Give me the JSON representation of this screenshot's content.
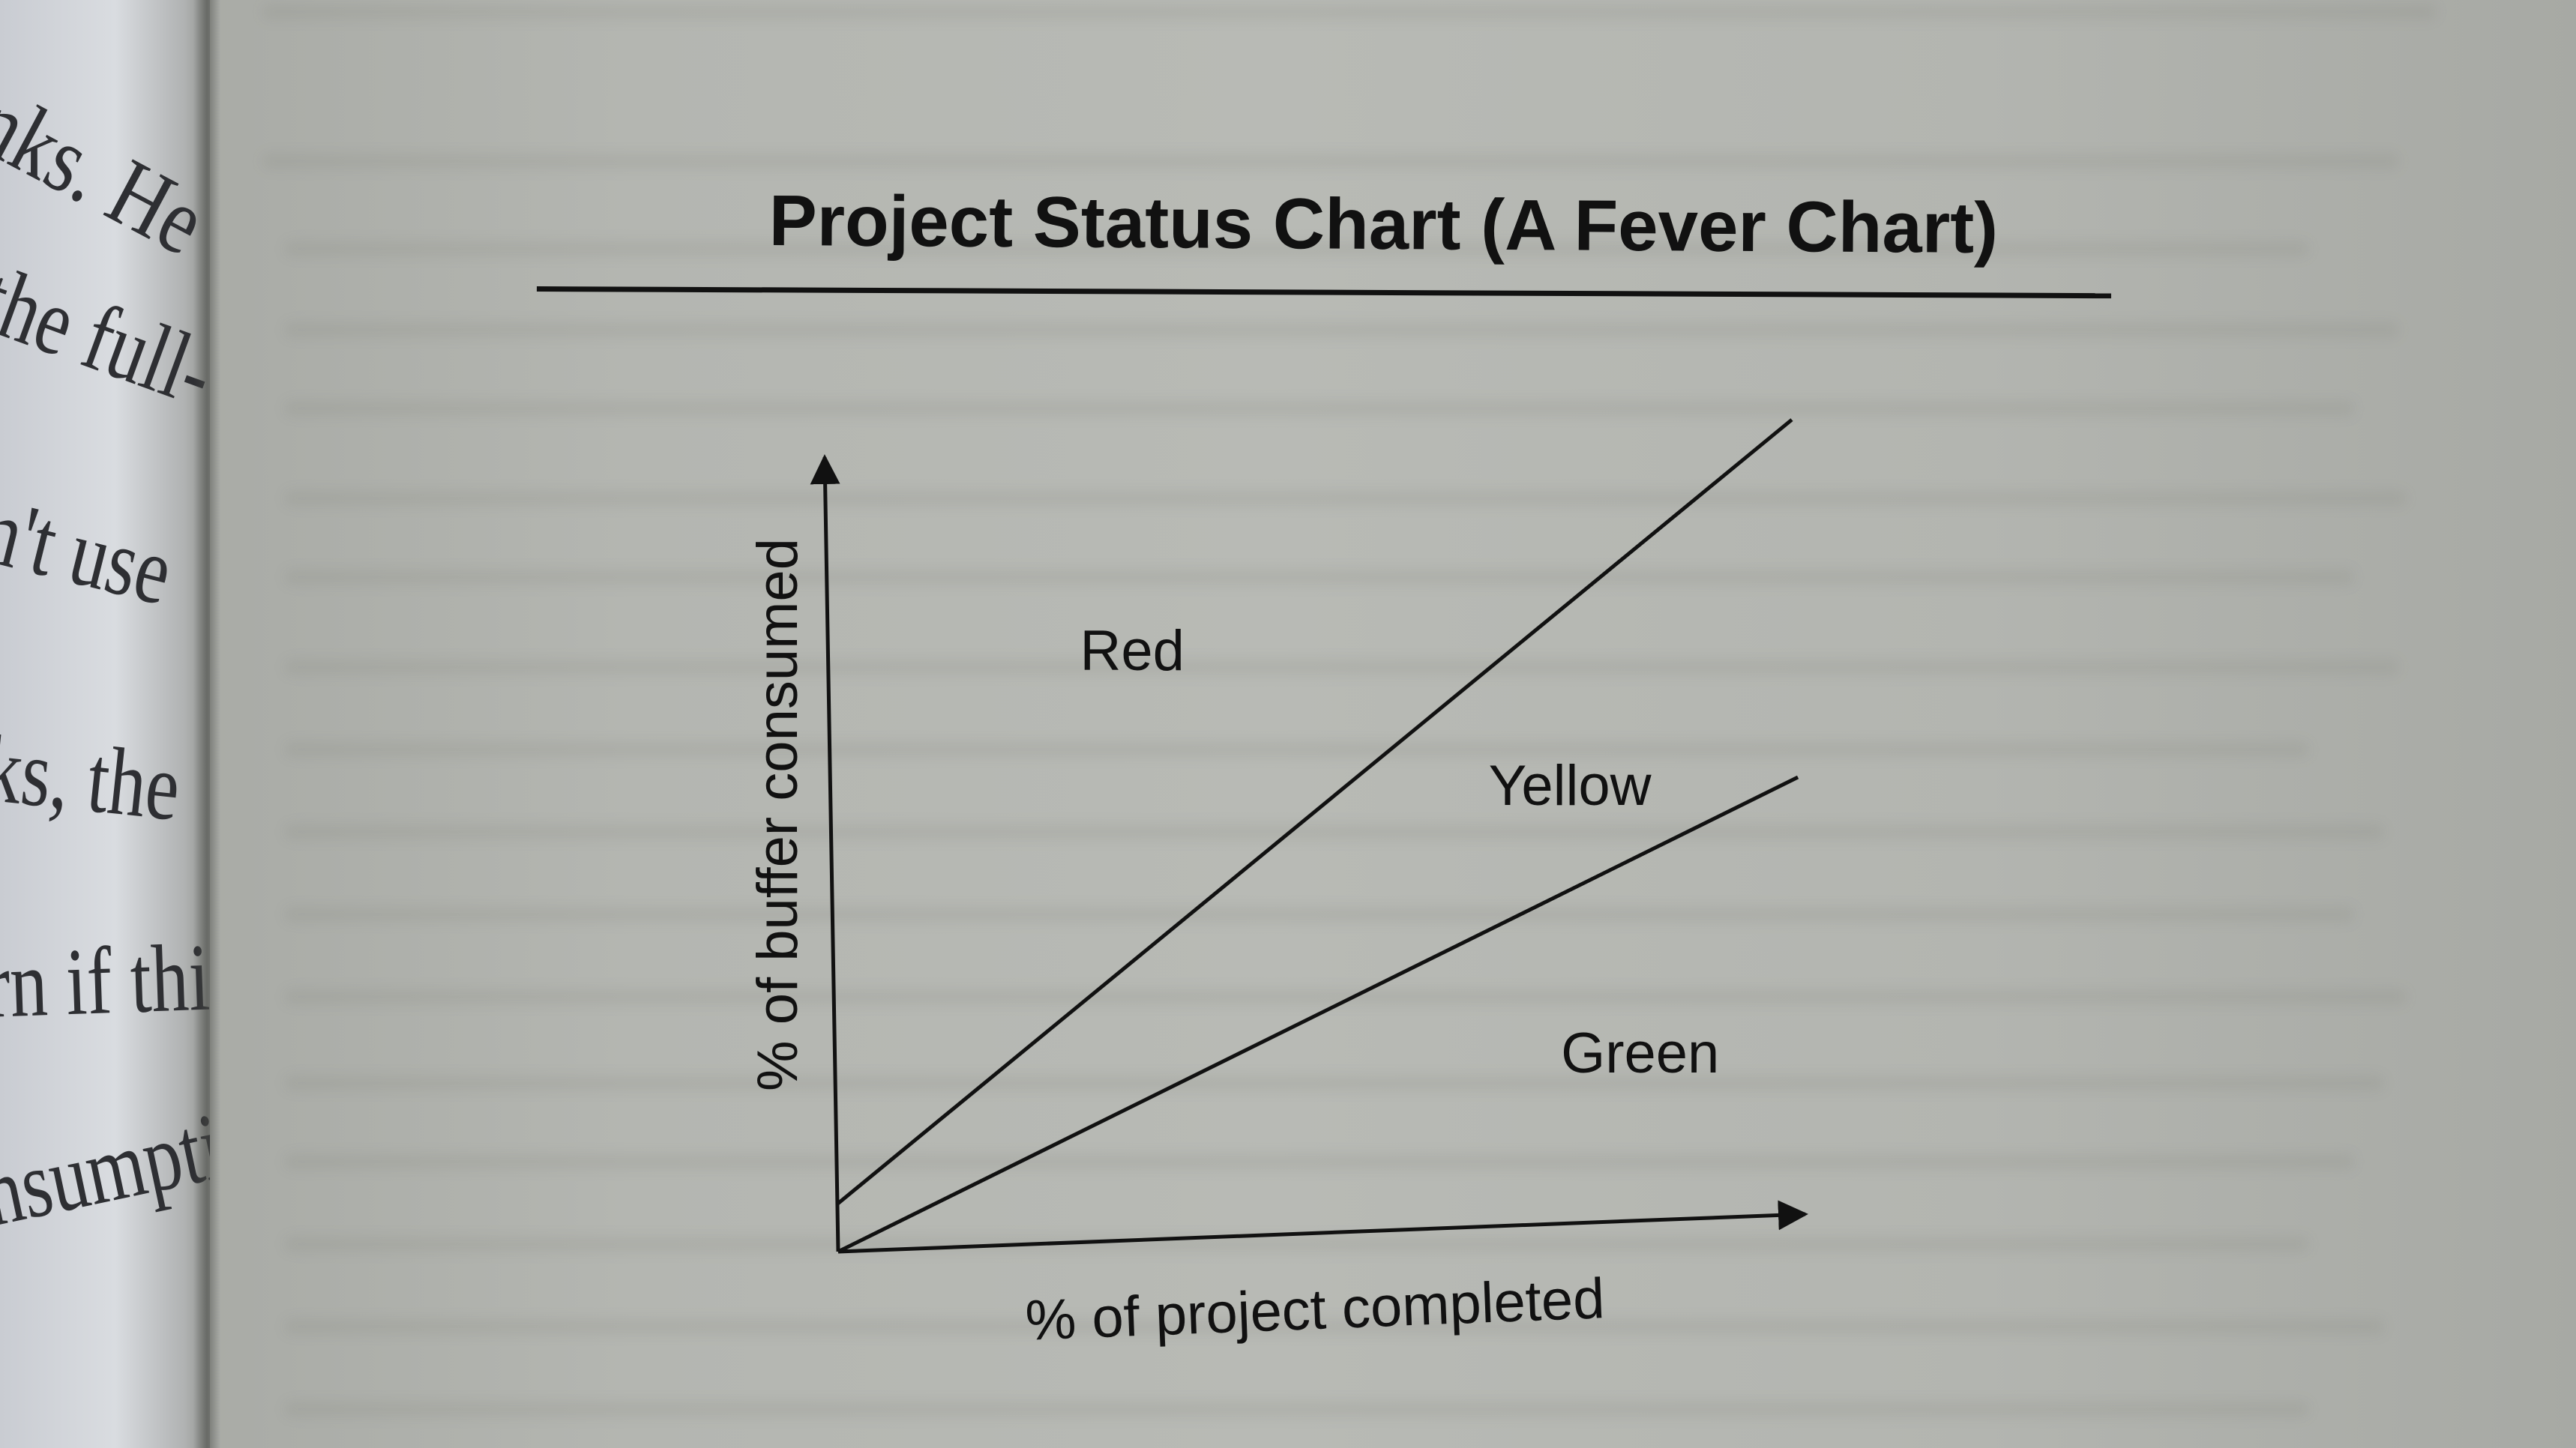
{
  "left_page": {
    "lines": [
      "nks. He",
      "the full-",
      "n't use",
      "ks, the",
      "rn if this",
      "nsumptio"
    ]
  },
  "figure": {
    "title": "Project Status Chart (A Fever Chart)"
  },
  "chart_data": {
    "type": "line",
    "title": "Project Status Chart (A Fever Chart)",
    "xlabel": "% of project completed",
    "ylabel": "% of buffer consumed",
    "xlim": [
      0,
      100
    ],
    "ylim": [
      0,
      100
    ],
    "grid": false,
    "legend": "none",
    "series": [
      {
        "x": [
          0,
          100
        ],
        "values": [
          6,
          100
        ],
        "color": "#111111"
      },
      {
        "x": [
          0,
          100
        ],
        "values": [
          0,
          55
        ],
        "color": "#111111"
      }
    ],
    "regions": [
      {
        "label": "Red",
        "x": 26,
        "y": 72
      },
      {
        "label": "Yellow",
        "x": 68,
        "y": 53
      },
      {
        "label": "Green",
        "x": 75,
        "y": 19
      }
    ]
  }
}
